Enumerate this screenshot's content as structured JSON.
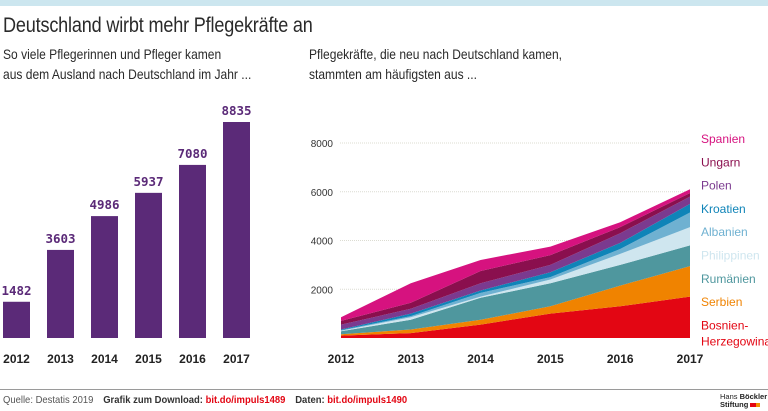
{
  "header": {
    "title": "Deutschland wirbt mehr Pflegekräfte an",
    "subtitle_left_line1": "So viele Pflegerinnen und Pfleger kamen",
    "subtitle_left_line2": "aus dem Ausland nach Deutschland im Jahr ...",
    "subtitle_right_line1": "Pflegekräfte, die neu nach Deutschland kamen,",
    "subtitle_right_line2": "stammten am häufigsten aus ..."
  },
  "colors": {
    "bar": "#5b2a78",
    "top_band": "#cce6ef",
    "link_red": "#e30613"
  },
  "chart_data": [
    {
      "type": "bar",
      "title": "So viele Pflegerinnen und Pfleger kamen aus dem Ausland nach Deutschland im Jahr ...",
      "categories": [
        "2012",
        "2013",
        "2014",
        "2015",
        "2016",
        "2017"
      ],
      "values": [
        1482,
        3603,
        4986,
        5937,
        7080,
        8835
      ],
      "value_labels": [
        "1482",
        "3603",
        "4986",
        "5937",
        "7080",
        "8835"
      ],
      "xlabel": "",
      "ylabel": "",
      "ylim": [
        0,
        9500
      ],
      "grid": false,
      "legend": "none"
    },
    {
      "type": "area",
      "stacked": true,
      "title": "Pflegekräfte, die neu nach Deutschland kamen, stammten am häufigsten aus ...",
      "x": [
        "2012",
        "2013",
        "2014",
        "2015",
        "2016",
        "2017"
      ],
      "yticks": [
        "2000",
        "4000",
        "6000",
        "8000"
      ],
      "ylim": [
        0,
        8000
      ],
      "grid": true,
      "legend": "right",
      "series": [
        {
          "name": "Bosnien-Herzegowina",
          "label_line1": "Bosnien-",
          "label_line2": "Herzegowina",
          "color": "#e30613",
          "values": [
            100,
            200,
            550,
            1000,
            1300,
            1700
          ]
        },
        {
          "name": "Serbien",
          "color": "#f08300",
          "values": [
            50,
            150,
            200,
            300,
            850,
            1250
          ]
        },
        {
          "name": "Rumänien",
          "color": "#4f979e",
          "values": [
            130,
            400,
            900,
            950,
            850,
            850
          ]
        },
        {
          "name": "Philippinen",
          "color": "#cfe6ef",
          "values": [
            20,
            100,
            50,
            150,
            450,
            750
          ]
        },
        {
          "name": "Albanien",
          "color": "#6fb1d1",
          "values": [
            20,
            50,
            150,
            100,
            200,
            600
          ]
        },
        {
          "name": "Kroatien",
          "color": "#0f84b8",
          "values": [
            30,
            100,
            100,
            200,
            250,
            350
          ]
        },
        {
          "name": "Polen",
          "color": "#7b3a8f",
          "values": [
            200,
            200,
            300,
            300,
            400,
            300
          ]
        },
        {
          "name": "Ungarn",
          "color": "#8a0f4e",
          "values": [
            150,
            250,
            500,
            400,
            250,
            150
          ]
        },
        {
          "name": "Spanien",
          "color": "#d6127f",
          "values": [
            150,
            800,
            450,
            350,
            200,
            150
          ]
        }
      ]
    }
  ],
  "footer": {
    "source": "Quelle: Destatis 2019",
    "download_label": "Grafik zum Download:",
    "download_link": "bit.do/impuls1489",
    "data_label": "Daten:",
    "data_link": "bit.do/impuls1490",
    "logo_line1_a": "Hans",
    "logo_line1_b": "Böckler",
    "logo_line2": "Stiftung"
  }
}
